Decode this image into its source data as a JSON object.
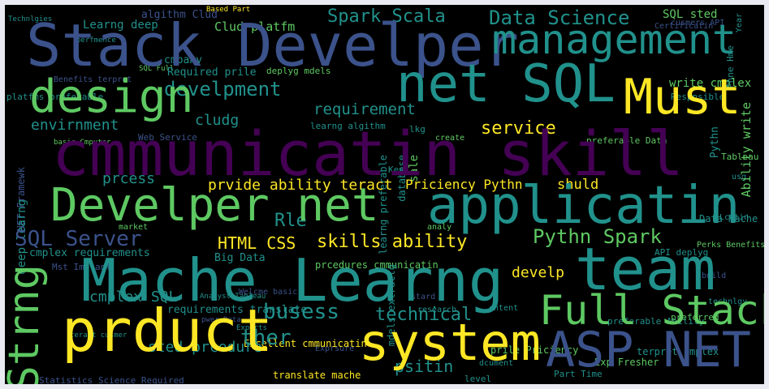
{
  "cloud": {
    "background": "#000000",
    "frame_color": "#eaeaf2",
    "palette": [
      "#440154",
      "#3b528b",
      "#21918c",
      "#5ec962",
      "#fde725"
    ],
    "words": [
      "cmmunicatin skill",
      "Stack Develper",
      "management",
      "Develper net",
      "applicatin",
      "Mache Learng",
      "team",
      "prduct",
      "system",
      "ASP NET",
      "design",
      "net SQL",
      "Must",
      "Full Stack",
      "Data Science",
      "Spark Scala",
      "develpment",
      "SQL Server",
      "Strng",
      "busess",
      "Pythn Spark",
      "skills ability",
      "technical",
      "HTML CSS",
      "ther",
      "service",
      "Rle",
      "prvide ability teract",
      "Priciency Pythn",
      "shuld",
      "requirement",
      "Clud platfm",
      "Learng deep",
      "envirnment",
      "prcess",
      "cludg",
      "SQL sted",
      "cmplex SQL",
      "sted prcedure",
      "psitin",
      "develp",
      "Big Data",
      "requirements translate",
      "Ability write",
      "write cmplex",
      "cmpany",
      "Required prile",
      "deep learng",
      "Data Mache",
      "Excellent cmmunicatin",
      "prile Priciency",
      "translate mache",
      "terpret cmplex",
      "Exp Fresher",
      "Part Time",
      "preferable Data",
      "preferable Ability",
      "learng algithm",
      "deplyg mdels",
      "Scala Big",
      "cmplex requirements",
      "prcedures cmmunicatin",
      "algithm Clud",
      "Web Service",
      "teract cusmer",
      "Mst Imptant",
      "API deplyg",
      "Perks Benefits",
      "Respnsible",
      "sale",
      "database",
      "learng preferable",
      "Pythn",
      "SQL Full",
      "cusmers API",
      "preferred",
      "Tableau",
      "Key",
      "lkg",
      "create",
      "analy",
      "research",
      "level",
      "Welcme basic",
      "technlgy",
      "build",
      "Exprsure",
      "stard",
      "market",
      "Statistics Science Required",
      "mdels extractg",
      "Phne Hme",
      "Lcatin",
      "Based Part",
      "Benefits terpret",
      "platfms preferable",
      "Technlgies",
      "perfmence",
      "basic Cmputer",
      "NET Framewk",
      "Certificatin",
      "Analyst Tableau",
      "pwer Data",
      "dcument",
      "cntent",
      "Experts",
      "Year",
      "usg",
      "supprt",
      "Varius"
    ]
  }
}
